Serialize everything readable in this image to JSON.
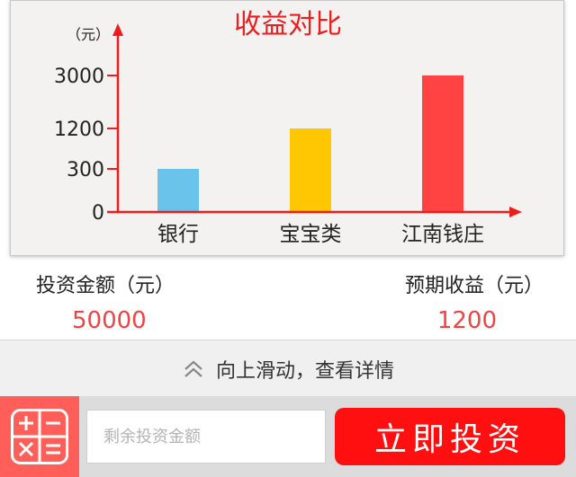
{
  "chart": {
    "title": "收益对比",
    "unit_label": "（元）"
  },
  "chart_data": {
    "type": "bar",
    "title": "收益对比",
    "ylabel": "（元）",
    "xlabel": "",
    "categories": [
      "银行",
      "宝宝类",
      "江南钱庄"
    ],
    "values": [
      300,
      1200,
      3000
    ],
    "yticks": [
      0,
      300,
      1200,
      3000
    ],
    "colors": [
      "#69c3ea",
      "#ffc702",
      "#ff4343"
    ],
    "axis_color": "#ee1c1c",
    "grid": false
  },
  "summary": {
    "amount_label": "投资金额（元）",
    "amount_value": "50000",
    "profit_label": "预期收益（元）",
    "profit_value": "1200"
  },
  "slide_hint": {
    "icon": "double-chevron-up-icon",
    "text": "向上滑动，查看详情"
  },
  "bottom": {
    "calc_icon": "calculator-icon",
    "input_placeholder": "剩余投资金额",
    "invest_label": "立即投资"
  }
}
